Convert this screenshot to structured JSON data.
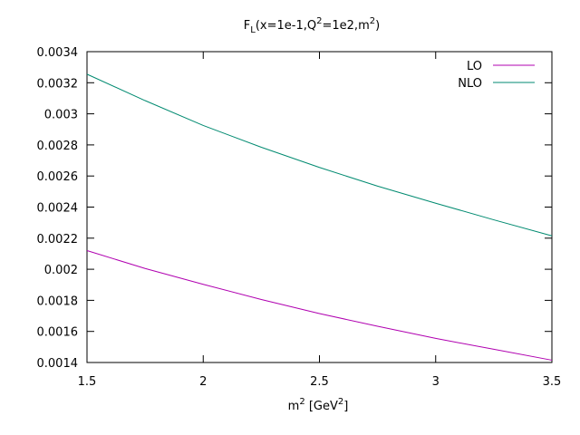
{
  "chart_data": {
    "type": "line",
    "title": {
      "base": "F",
      "sub": "L",
      "mid1": "(x=1e-1,Q",
      "sup1": "2",
      "mid2": "=1e2,m",
      "sup2": "2",
      "end": ")"
    },
    "xlabel": {
      "base": "m",
      "sup1": "2",
      "mid": " [GeV",
      "sup2": "2",
      "end": "]"
    },
    "ylabel": "",
    "xlim": [
      1.5,
      3.5
    ],
    "ylim": [
      0.0014,
      0.0034
    ],
    "x_ticks": [
      1.5,
      2,
      2.5,
      3,
      3.5
    ],
    "x_tick_labels": [
      "1.5",
      "2",
      "2.5",
      "3",
      "3.5"
    ],
    "y_ticks": [
      0.0014,
      0.0016,
      0.0018,
      0.002,
      0.0022,
      0.0024,
      0.0026,
      0.0028,
      0.003,
      0.0032,
      0.0034
    ],
    "y_tick_labels": [
      "0.0014",
      "0.0016",
      "0.0018",
      "0.002",
      "0.0022",
      "0.0024",
      "0.0026",
      "0.0028",
      "0.003",
      "0.0032",
      "0.0034"
    ],
    "grid": false,
    "legend_position": "top-right",
    "series": [
      {
        "name": "LO",
        "color": "#b000b0",
        "x": [
          1.5,
          1.75,
          2.0,
          2.25,
          2.5,
          2.75,
          3.0,
          3.25,
          3.5
        ],
        "y": [
          0.00212,
          0.002005,
          0.001903,
          0.001805,
          0.001715,
          0.001633,
          0.001555,
          0.001485,
          0.001415
        ]
      },
      {
        "name": "NLO",
        "color": "#008a70",
        "x": [
          1.5,
          1.75,
          2.0,
          2.25,
          2.5,
          2.75,
          3.0,
          3.25,
          3.5
        ],
        "y": [
          0.003255,
          0.003085,
          0.002925,
          0.002785,
          0.002655,
          0.002535,
          0.002425,
          0.002318,
          0.002215
        ]
      }
    ]
  }
}
